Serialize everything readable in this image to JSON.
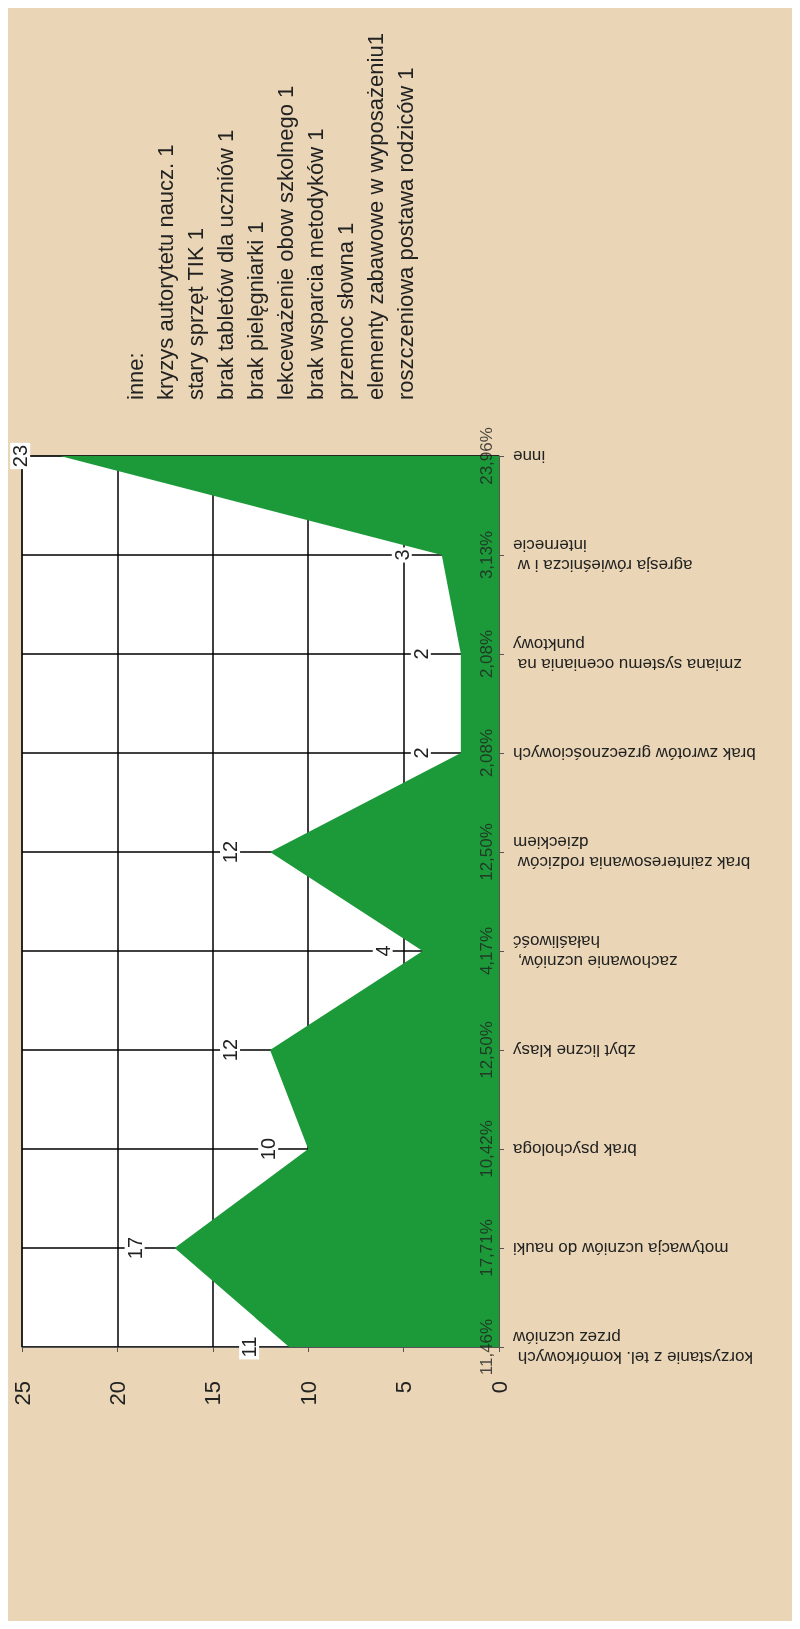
{
  "chart_data": {
    "type": "area",
    "orientation": "horizontal",
    "categories": [
      "inne",
      "agresja rówieśnicza i w internecie",
      "zmiana systemu oceniania na punktowy",
      "brak zwrotów grzecznościowych",
      "brak zainteresowania rodziców dzieckiem",
      "zachowanie uczniów, hałaśliwość",
      "zbyt liczne klasy",
      "brak psychologa",
      "motywacja uczniów do nauki",
      "korzystanie z tel. komórkowych przez uczniów"
    ],
    "values": [
      23,
      3,
      2,
      2,
      12,
      4,
      12,
      10,
      17,
      11
    ],
    "color": "#1c9a3a",
    "xlim": [
      25,
      0
    ],
    "xticks": [
      25,
      20,
      15,
      10,
      5,
      0
    ],
    "grid": true,
    "data_labels": true,
    "annotations": [
      "23,96%",
      "3,13%",
      "2,08%",
      "2,08%",
      "12,50%",
      "4,17%",
      "12,50%",
      "10,42%",
      "17,71%",
      "11,46%",
      "inne:",
      "kryzys autorytetu naucz. 1",
      "stary sprzęt TIK 1",
      "brak tabletów dla uczniów 1",
      "brak pielęgniarki 1",
      "lekceważenie obow szkolnego 1",
      "brak wsparcia metodyków 1",
      "przemoc słowna 1",
      "elementy zabawowe w wyposażeniu1",
      "roszczeniowa postawa rodziców 1"
    ]
  }
}
